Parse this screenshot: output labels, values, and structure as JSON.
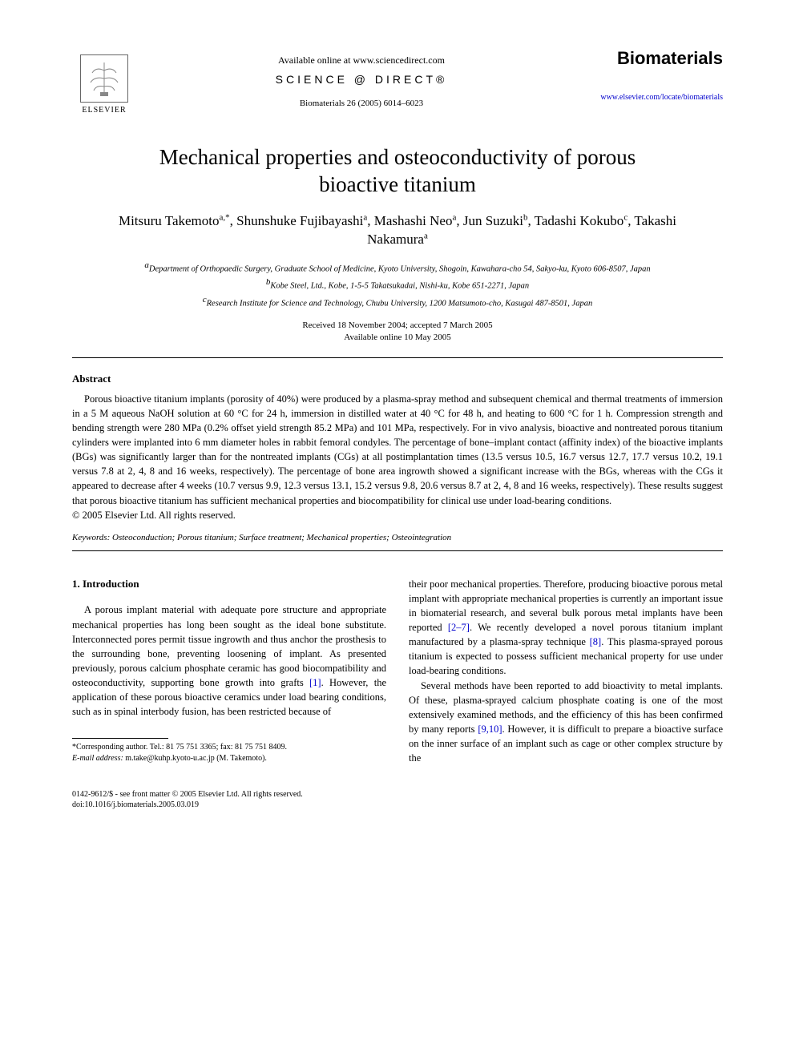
{
  "header": {
    "elsevier_label": "ELSEVIER",
    "available_online": "Available online at www.sciencedirect.com",
    "science_direct": "SCIENCE @ DIRECT®",
    "citation": "Biomaterials 26 (2005) 6014–6023",
    "journal_brand": "Biomaterials",
    "journal_url": "www.elsevier.com/locate/biomaterials"
  },
  "title": "Mechanical properties and osteoconductivity of porous bioactive titanium",
  "authors_html": "Mitsuru Takemoto<span class='sup'>a,*</span>, Shunshuke Fujibayashi<span class='sup'>a</span>, Mashashi Neo<span class='sup'>a</span>, Jun Suzuki<span class='sup'>b</span>, Tadashi Kokubo<span class='sup'>c</span>, Takashi Nakamura<span class='sup'>a</span>",
  "affiliations": {
    "a": "Department of Orthopaedic Surgery, Graduate School of Medicine, Kyoto University, Shogoin, Kawahara-cho 54, Sakyo-ku, Kyoto 606-8507, Japan",
    "b": "Kobe Steel, Ltd., Kobe, 1-5-5 Takatsukadai, Nishi-ku, Kobe 651-2271, Japan",
    "c": "Research Institute for Science and Technology, Chubu University, 1200 Matsumoto-cho, Kasugai 487-8501, Japan"
  },
  "dates": {
    "received_accepted": "Received 18 November 2004; accepted 7 March 2005",
    "online": "Available online 10 May 2005"
  },
  "abstract": {
    "heading": "Abstract",
    "body": "Porous bioactive titanium implants (porosity of 40%) were produced by a plasma-spray method and subsequent chemical and thermal treatments of immersion in a 5 M aqueous NaOH solution at 60 °C for 24 h, immersion in distilled water at 40 °C for 48 h, and heating to 600 °C for 1 h. Compression strength and bending strength were 280 MPa (0.2% offset yield strength 85.2 MPa) and 101 MPa, respectively. For in vivo analysis, bioactive and nontreated porous titanium cylinders were implanted into 6 mm diameter holes in rabbit femoral condyles. The percentage of bone–implant contact (affinity index) of the bioactive implants (BGs) was significantly larger than for the nontreated implants (CGs) at all postimplantation times (13.5 versus 10.5, 16.7 versus 12.7, 17.7 versus 10.2, 19.1 versus 7.8 at 2, 4, 8 and 16 weeks, respectively). The percentage of bone area ingrowth showed a significant increase with the BGs, whereas with the CGs it appeared to decrease after 4 weeks (10.7 versus 9.9, 12.3 versus 13.1, 15.2 versus 9.8, 20.6 versus 8.7 at 2, 4, 8 and 16 weeks, respectively). These results suggest that porous bioactive titanium has sufficient mechanical properties and biocompatibility for clinical use under load-bearing conditions.",
    "copyright": "© 2005 Elsevier Ltd. All rights reserved."
  },
  "keywords": {
    "label": "Keywords:",
    "list": "Osteoconduction; Porous titanium; Surface treatment; Mechanical properties; Osteointegration"
  },
  "section1": {
    "heading": "1. Introduction",
    "col1_para1": "A porous implant material with adequate pore structure and appropriate mechanical properties has long been sought as the ideal bone substitute. Interconnected pores permit tissue ingrowth and thus anchor the prosthesis to the surrounding bone, preventing loosening of implant. As presented previously, porous calcium phosphate ceramic has good biocompatibility and osteoconductivity, supporting bone growth into grafts [1]. However, the application of these porous bioactive ceramics under load bearing conditions, such as in spinal interbody fusion, has been restricted because of",
    "col2_para1": "their poor mechanical properties. Therefore, producing bioactive porous metal implant with appropriate mechanical properties is currently an important issue in biomaterial research, and several bulk porous metal implants have been reported [2–7]. We recently developed a novel porous titanium implant manufactured by a plasma-spray technique [8]. This plasma-sprayed porous titanium is expected to possess sufficient mechanical property for use under load-bearing conditions.",
    "col2_para2": "Several methods have been reported to add bioactivity to metal implants. Of these, plasma-sprayed calcium phosphate coating is one of the most extensively examined methods, and the efficiency of this has been confirmed by many reports [9,10]. However, it is difficult to prepare a bioactive surface on the inner surface of an implant such as cage or other complex structure by the"
  },
  "footnote": {
    "corresponding": "*Corresponding author. Tel.: 81 75 751 3365; fax: 81 75 751 8409.",
    "email_label": "E-mail address:",
    "email": "m.take@kuhp.kyoto-u.ac.jp (M. Takemoto)."
  },
  "footer": {
    "issn": "0142-9612/$ - see front matter © 2005 Elsevier Ltd. All rights reserved.",
    "doi": "doi:10.1016/j.biomaterials.2005.03.019"
  },
  "refs": {
    "r1": "[1]",
    "r2_7": "[2–7]",
    "r8": "[8]",
    "r9_10": "[9,10]"
  }
}
